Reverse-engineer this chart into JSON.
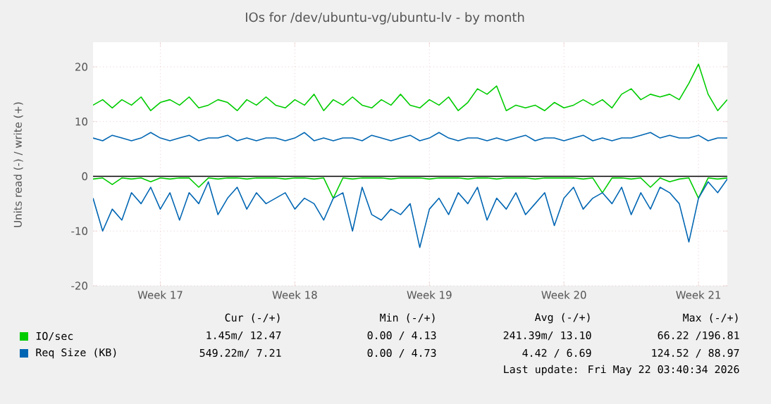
{
  "chart_data": {
    "type": "line",
    "title": "IOs for /dev/ubuntu-vg/ubuntu-lv - by month",
    "ylabel": "Units read (-) / write (+)",
    "categories": [
      null,
      null,
      null,
      null,
      null,
      null,
      null,
      "Week 17",
      null,
      null,
      null,
      null,
      null,
      null,
      null,
      null,
      null,
      null,
      null,
      null,
      null,
      "Week 18",
      null,
      null,
      null,
      null,
      null,
      null,
      null,
      null,
      null,
      null,
      null,
      null,
      null,
      "Week 19",
      null,
      null,
      null,
      null,
      null,
      null,
      null,
      null,
      null,
      null,
      null,
      null,
      null,
      "Week 20",
      null,
      null,
      null,
      null,
      null,
      null,
      null,
      null,
      null,
      null,
      null,
      null,
      null,
      "Week 21",
      null,
      null,
      null
    ],
    "series": [
      {
        "name": "IO/sec",
        "color": "#00cc00",
        "values": [
          13,
          14,
          12.5,
          14,
          13,
          14.5,
          12,
          13.5,
          14,
          13,
          14.5,
          12.5,
          13,
          14,
          13.5,
          12,
          14,
          13,
          14.5,
          13,
          12.5,
          14,
          13,
          15,
          12,
          14,
          13,
          14.5,
          13,
          12.5,
          14,
          13,
          15,
          13,
          12.5,
          14,
          13,
          14.5,
          12,
          13.5,
          16,
          15,
          16.5,
          12,
          13,
          12.5,
          13,
          12,
          13.5,
          12.5,
          13,
          14,
          13,
          14,
          12.5,
          15,
          16,
          14,
          15,
          14.5,
          15,
          14,
          17,
          20.5,
          15,
          12,
          14
        ]
      },
      {
        "name": "Req Size (KB)",
        "color": "#0066b3",
        "values": [
          7,
          6.5,
          7.5,
          7,
          6.5,
          7,
          8,
          7,
          6.5,
          7,
          7.5,
          6.5,
          7,
          7,
          7.5,
          6.5,
          7,
          6.5,
          7,
          7,
          6.5,
          7,
          8,
          6.5,
          7,
          6.5,
          7,
          7,
          6.5,
          7.5,
          7,
          6.5,
          7,
          7.5,
          6.5,
          7,
          8,
          7,
          6.5,
          7,
          7,
          6.5,
          7,
          6.5,
          7,
          7.5,
          6.5,
          7,
          7,
          6.5,
          7,
          7.5,
          6.5,
          7,
          6.5,
          7,
          7,
          7.5,
          8,
          7,
          7.5,
          7,
          7,
          7.5,
          6.5,
          7,
          7
        ]
      },
      {
        "color": "#00cc00",
        "values": [
          -0.5,
          -0.3,
          -1.5,
          -0.3,
          -0.5,
          -0.3,
          -1,
          -0.3,
          -0.5,
          -0.3,
          -0.3,
          -2,
          -0.3,
          -0.5,
          -0.3,
          -0.3,
          -0.5,
          -0.3,
          -0.3,
          -0.3,
          -0.5,
          -0.3,
          -0.3,
          -0.5,
          -0.3,
          -4,
          -0.3,
          -0.5,
          -0.3,
          -0.3,
          -0.3,
          -0.5,
          -0.3,
          -0.3,
          -0.3,
          -0.5,
          -0.3,
          -0.3,
          -0.3,
          -0.5,
          -0.3,
          -0.3,
          -0.5,
          -0.3,
          -0.3,
          -0.3,
          -0.5,
          -0.3,
          -0.3,
          -0.3,
          -0.3,
          -0.5,
          -0.3,
          -3,
          -0.3,
          -0.3,
          -0.5,
          -0.3,
          -2,
          -0.3,
          -1,
          -0.5,
          -0.3,
          -4,
          -0.3,
          -0.5,
          -0.3
        ]
      },
      {
        "color": "#0066b3",
        "values": [
          -4,
          -10,
          -6,
          -8,
          -3,
          -5,
          -2,
          -6,
          -3,
          -8,
          -3,
          -5,
          -1,
          -7,
          -4,
          -2,
          -6,
          -3,
          -5,
          -4,
          -3,
          -6,
          -4,
          -5,
          -8,
          -4,
          -3,
          -10,
          -2,
          -7,
          -8,
          -6,
          -7,
          -5,
          -13,
          -6,
          -4,
          -7,
          -3,
          -5,
          -2,
          -8,
          -4,
          -6,
          -3,
          -7,
          -5,
          -3,
          -9,
          -4,
          -2,
          -6,
          -4,
          -3,
          -5,
          -2,
          -7,
          -3,
          -6,
          -2,
          -3,
          -5,
          -12,
          -4,
          -1,
          -3,
          -0.5
        ]
      }
    ],
    "ylim": [
      -20,
      24.5
    ],
    "yticks": [
      -20,
      -10,
      0,
      10,
      20
    ],
    "grid": true,
    "legend": "bottom",
    "marker": "none",
    "line_style": "solid",
    "ref_lines": [
      {
        "axis": "y",
        "value": 0,
        "color": "#000000"
      }
    ],
    "annotations": [
      "Cur (-/+)",
      "Min (-/+)",
      "Avg (-/+)",
      "Max (-/+)",
      "1.45m/ 12.47",
      "0.00 /  4.13",
      "241.39m/ 13.10",
      "66.22 /196.81",
      "549.22m/  7.21",
      "0.00 /  4.73",
      "4.42 /  6.69",
      "124.52 / 88.97",
      "Last update: Fri May 22 03:40:34 2026"
    ]
  }
}
